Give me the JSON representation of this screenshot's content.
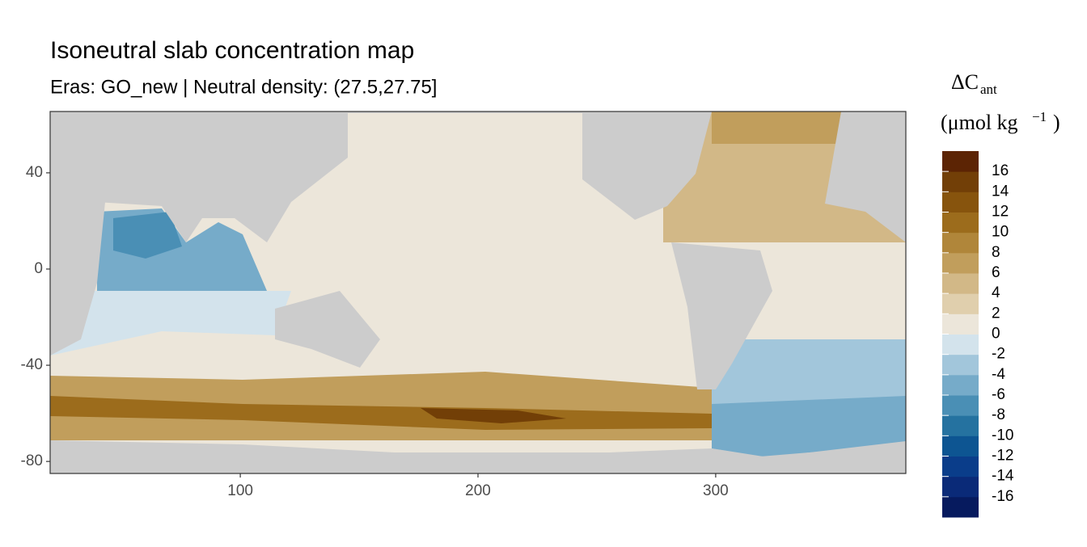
{
  "chart_data": {
    "type": "raster-map",
    "title": "Isoneutral slab concentration map",
    "subtitle": "Eras: GO_new | Neutral density: (27.5,27.75]",
    "xlim": [
      20,
      380
    ],
    "xticks": [
      100,
      200,
      300
    ],
    "ylim": [
      -85,
      65.5
    ],
    "yticks": [
      40,
      0,
      -40,
      -80
    ],
    "legend": {
      "title": "ΔC",
      "title_sub": "ant",
      "unit_pre": "(μmol kg",
      "unit_sup": "−1",
      "unit_post": ")",
      "lim": [
        -18,
        18
      ],
      "ticks": [
        16,
        14,
        12,
        10,
        8,
        6,
        4,
        2,
        0,
        -2,
        -4,
        -6,
        -8,
        -10,
        -12,
        -14,
        -16
      ],
      "colors": [
        "#061a5e",
        "#0a2a78",
        "#0a3d8a",
        "#0d5592",
        "#2572a0",
        "#4a8fb5",
        "#76abc9",
        "#a2c6db",
        "#d3e3ec",
        "#ece6da",
        "#e0cfad",
        "#d2b887",
        "#c19e5c",
        "#b0863a",
        "#9c6c1c",
        "#87540d",
        "#723f07",
        "#5c2404"
      ]
    }
  }
}
